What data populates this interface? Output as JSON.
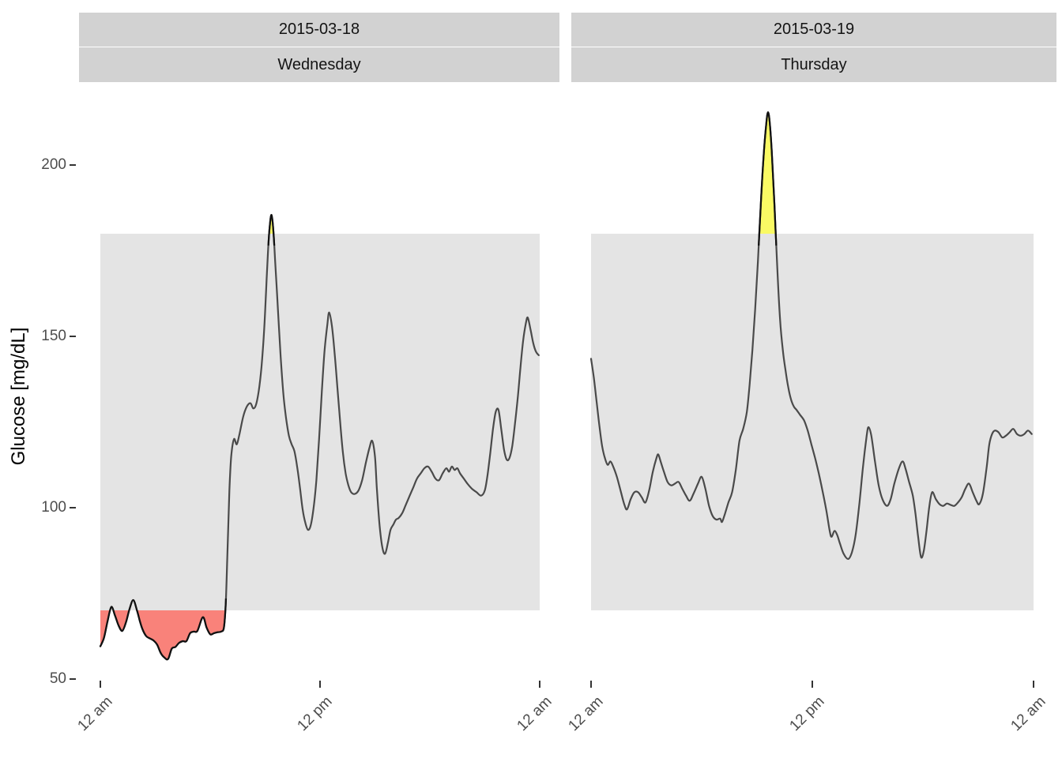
{
  "y_axis": {
    "label": "Glucose [mg/dL]",
    "ticks": [
      200,
      150,
      100,
      50
    ]
  },
  "x_axis": {
    "ticks": [
      {
        "hour": 0,
        "label": "12 am"
      },
      {
        "hour": 12,
        "label": "12 pm"
      },
      {
        "hour": 24,
        "label": "12 am"
      }
    ]
  },
  "target_band": {
    "low": 70,
    "high": 180
  },
  "colors": {
    "band": "#e4e4e4",
    "strip": "#d2d2d2",
    "line": "#4a4a4a",
    "low_fill": "#f9827a",
    "high_fill": "#fafa64",
    "outline": "#111111",
    "tick_mark": "#333333",
    "tick_text": "#4d4d4d",
    "strip_text": "#141414"
  },
  "chart_data": {
    "type": "line",
    "ylabel": "Glucose [mg/dL]",
    "y_ticks": [
      50,
      100,
      150,
      200
    ],
    "y_range": [
      45,
      225
    ],
    "x_tick_labels": [
      "12 am",
      "12 pm",
      "12 am"
    ],
    "x_tick_hours": [
      0,
      12,
      24
    ],
    "target_range": {
      "low": 70,
      "high": 180
    },
    "grid": false,
    "legend": false,
    "facets": [
      {
        "date": "2015-03-18",
        "weekday": "Wednesday",
        "points": [
          [
            0,
            59.5
          ],
          [
            0.2,
            62
          ],
          [
            0.4,
            67
          ],
          [
            0.6,
            71
          ],
          [
            0.8,
            68.5
          ],
          [
            1,
            65.5
          ],
          [
            1.2,
            64
          ],
          [
            1.4,
            66.5
          ],
          [
            1.6,
            70.5
          ],
          [
            1.8,
            73
          ],
          [
            2,
            70
          ],
          [
            2.15,
            67
          ],
          [
            2.3,
            64.5
          ],
          [
            2.5,
            62.5
          ],
          [
            2.7,
            61.8
          ],
          [
            2.9,
            61.2
          ],
          [
            3.1,
            60
          ],
          [
            3.3,
            57.5
          ],
          [
            3.5,
            56.2
          ],
          [
            3.7,
            55.8
          ],
          [
            3.9,
            58.8
          ],
          [
            4.1,
            59.3
          ],
          [
            4.3,
            60.5
          ],
          [
            4.5,
            61
          ],
          [
            4.7,
            61
          ],
          [
            4.9,
            63.3
          ],
          [
            5.1,
            63.8
          ],
          [
            5.3,
            64
          ],
          [
            5.6,
            68
          ],
          [
            5.8,
            65
          ],
          [
            6,
            63
          ],
          [
            6.2,
            63.3
          ],
          [
            6.4,
            63.6
          ],
          [
            6.6,
            63.8
          ],
          [
            6.75,
            65
          ],
          [
            6.85,
            72
          ],
          [
            6.95,
            88
          ],
          [
            7.05,
            105
          ],
          [
            7.15,
            115
          ],
          [
            7.3,
            120
          ],
          [
            7.45,
            118.5
          ],
          [
            7.6,
            121.5
          ],
          [
            7.8,
            126.5
          ],
          [
            8,
            129.5
          ],
          [
            8.2,
            130.5
          ],
          [
            8.35,
            129
          ],
          [
            8.5,
            130
          ],
          [
            8.65,
            134
          ],
          [
            8.8,
            141
          ],
          [
            8.95,
            152
          ],
          [
            9.05,
            163
          ],
          [
            9.15,
            174
          ],
          [
            9.25,
            182
          ],
          [
            9.35,
            185.5
          ],
          [
            9.45,
            181
          ],
          [
            9.55,
            172
          ],
          [
            9.7,
            158
          ],
          [
            9.85,
            144
          ],
          [
            10,
            133
          ],
          [
            10.15,
            126
          ],
          [
            10.3,
            121
          ],
          [
            10.45,
            118.5
          ],
          [
            10.6,
            116.5
          ],
          [
            10.75,
            112
          ],
          [
            10.9,
            106
          ],
          [
            11.05,
            99.5
          ],
          [
            11.2,
            95.5
          ],
          [
            11.35,
            93.5
          ],
          [
            11.5,
            95
          ],
          [
            11.65,
            100
          ],
          [
            11.8,
            108
          ],
          [
            11.95,
            120
          ],
          [
            12.1,
            134
          ],
          [
            12.25,
            146
          ],
          [
            12.4,
            153.5
          ],
          [
            12.5,
            157
          ],
          [
            12.65,
            153
          ],
          [
            12.8,
            145
          ],
          [
            12.95,
            135
          ],
          [
            13.1,
            125
          ],
          [
            13.25,
            116
          ],
          [
            13.4,
            110
          ],
          [
            13.55,
            106.5
          ],
          [
            13.7,
            104.5
          ],
          [
            13.9,
            104
          ],
          [
            14.1,
            105
          ],
          [
            14.3,
            108
          ],
          [
            14.5,
            113
          ],
          [
            14.7,
            117.5
          ],
          [
            14.85,
            119.5
          ],
          [
            15,
            115
          ],
          [
            15.1,
            106
          ],
          [
            15.25,
            95
          ],
          [
            15.4,
            88.5
          ],
          [
            15.55,
            86.5
          ],
          [
            15.7,
            89.5
          ],
          [
            15.85,
            93.5
          ],
          [
            16,
            95
          ],
          [
            16.15,
            96.5
          ],
          [
            16.3,
            97
          ],
          [
            16.5,
            98.5
          ],
          [
            16.7,
            101
          ],
          [
            16.9,
            103.5
          ],
          [
            17.1,
            106
          ],
          [
            17.3,
            108.5
          ],
          [
            17.5,
            110
          ],
          [
            17.7,
            111.5
          ],
          [
            17.9,
            112
          ],
          [
            18.1,
            110.5
          ],
          [
            18.3,
            108.5
          ],
          [
            18.5,
            108
          ],
          [
            18.7,
            110
          ],
          [
            18.9,
            111.5
          ],
          [
            19.05,
            110.5
          ],
          [
            19.2,
            112
          ],
          [
            19.35,
            111
          ],
          [
            19.5,
            111.5
          ],
          [
            19.65,
            110
          ],
          [
            19.85,
            108.5
          ],
          [
            20.05,
            107
          ],
          [
            20.3,
            105.5
          ],
          [
            20.55,
            104.5
          ],
          [
            20.8,
            103.5
          ],
          [
            21,
            105
          ],
          [
            21.15,
            109.5
          ],
          [
            21.3,
            116
          ],
          [
            21.45,
            123
          ],
          [
            21.6,
            128
          ],
          [
            21.75,
            128.5
          ],
          [
            21.9,
            123
          ],
          [
            22.05,
            117
          ],
          [
            22.2,
            114
          ],
          [
            22.35,
            114.5
          ],
          [
            22.5,
            118
          ],
          [
            22.65,
            124.5
          ],
          [
            22.8,
            132
          ],
          [
            22.95,
            141
          ],
          [
            23.1,
            149
          ],
          [
            23.25,
            154
          ],
          [
            23.35,
            155.5
          ],
          [
            23.5,
            152
          ],
          [
            23.65,
            148
          ],
          [
            23.8,
            145.5
          ],
          [
            23.95,
            144.5
          ]
        ]
      },
      {
        "date": "2015-03-19",
        "weekday": "Thursday",
        "points": [
          [
            0,
            143.5
          ],
          [
            0.15,
            138
          ],
          [
            0.3,
            131
          ],
          [
            0.45,
            124
          ],
          [
            0.6,
            118
          ],
          [
            0.75,
            114.5
          ],
          [
            0.9,
            112.5
          ],
          [
            1.05,
            113.5
          ],
          [
            1.2,
            112
          ],
          [
            1.4,
            109
          ],
          [
            1.6,
            105
          ],
          [
            1.8,
            101
          ],
          [
            1.95,
            99.5
          ],
          [
            2.15,
            102.5
          ],
          [
            2.35,
            104.5
          ],
          [
            2.55,
            104.5
          ],
          [
            2.75,
            103
          ],
          [
            2.95,
            101.5
          ],
          [
            3.15,
            105
          ],
          [
            3.35,
            110.5
          ],
          [
            3.55,
            114.5
          ],
          [
            3.65,
            115.5
          ],
          [
            3.8,
            113
          ],
          [
            3.95,
            110.5
          ],
          [
            4.15,
            107.5
          ],
          [
            4.35,
            106.5
          ],
          [
            4.55,
            107
          ],
          [
            4.75,
            107.5
          ],
          [
            4.95,
            105.5
          ],
          [
            5.15,
            103.5
          ],
          [
            5.35,
            102
          ],
          [
            5.55,
            104
          ],
          [
            5.8,
            107
          ],
          [
            6,
            109
          ],
          [
            6.2,
            105.5
          ],
          [
            6.4,
            100.5
          ],
          [
            6.6,
            97.5
          ],
          [
            6.8,
            96.5
          ],
          [
            7,
            96.8
          ],
          [
            7.1,
            95.8
          ],
          [
            7.25,
            98
          ],
          [
            7.45,
            101.5
          ],
          [
            7.65,
            104.5
          ],
          [
            7.85,
            111
          ],
          [
            8.05,
            119.5
          ],
          [
            8.25,
            123
          ],
          [
            8.45,
            128
          ],
          [
            8.6,
            136
          ],
          [
            8.75,
            146
          ],
          [
            8.9,
            158
          ],
          [
            9.05,
            172
          ],
          [
            9.2,
            188
          ],
          [
            9.35,
            202
          ],
          [
            9.5,
            212
          ],
          [
            9.6,
            215.5
          ],
          [
            9.7,
            212
          ],
          [
            9.8,
            204
          ],
          [
            9.95,
            188
          ],
          [
            10.1,
            170
          ],
          [
            10.25,
            155
          ],
          [
            10.4,
            146
          ],
          [
            10.55,
            140
          ],
          [
            10.7,
            135
          ],
          [
            10.85,
            131.5
          ],
          [
            11,
            129.5
          ],
          [
            11.15,
            128.5
          ],
          [
            11.35,
            127
          ],
          [
            11.55,
            125.5
          ],
          [
            11.75,
            122.5
          ],
          [
            11.95,
            118.5
          ],
          [
            12.15,
            114.5
          ],
          [
            12.35,
            110
          ],
          [
            12.55,
            105
          ],
          [
            12.75,
            99.5
          ],
          [
            12.95,
            93
          ],
          [
            13.05,
            91.5
          ],
          [
            13.2,
            93.2
          ],
          [
            13.35,
            92
          ],
          [
            13.5,
            89.5
          ],
          [
            13.7,
            86.5
          ],
          [
            13.95,
            85
          ],
          [
            14.15,
            87
          ],
          [
            14.35,
            92
          ],
          [
            14.55,
            101
          ],
          [
            14.75,
            112
          ],
          [
            14.95,
            121
          ],
          [
            15.05,
            123.5
          ],
          [
            15.2,
            121
          ],
          [
            15.4,
            113.5
          ],
          [
            15.6,
            106.5
          ],
          [
            15.8,
            102.5
          ],
          [
            16.05,
            100.5
          ],
          [
            16.25,
            102.5
          ],
          [
            16.45,
            107
          ],
          [
            16.7,
            111.5
          ],
          [
            16.9,
            113.5
          ],
          [
            17.05,
            111.5
          ],
          [
            17.25,
            107.5
          ],
          [
            17.45,
            103.5
          ],
          [
            17.6,
            98
          ],
          [
            17.75,
            91
          ],
          [
            17.9,
            85.5
          ],
          [
            18.05,
            87.5
          ],
          [
            18.2,
            93.5
          ],
          [
            18.35,
            100.5
          ],
          [
            18.5,
            104.5
          ],
          [
            18.7,
            102.5
          ],
          [
            18.9,
            101
          ],
          [
            19.1,
            100.5
          ],
          [
            19.3,
            101.2
          ],
          [
            19.5,
            100.8
          ],
          [
            19.7,
            100.5
          ],
          [
            19.9,
            101.5
          ],
          [
            20.1,
            103
          ],
          [
            20.3,
            105.5
          ],
          [
            20.5,
            107
          ],
          [
            20.7,
            104.5
          ],
          [
            20.9,
            102
          ],
          [
            21.05,
            101
          ],
          [
            21.25,
            104
          ],
          [
            21.45,
            111.5
          ],
          [
            21.6,
            118.5
          ],
          [
            21.75,
            121.5
          ],
          [
            21.9,
            122.5
          ],
          [
            22.1,
            122
          ],
          [
            22.3,
            120.5
          ],
          [
            22.5,
            121
          ],
          [
            22.7,
            122
          ],
          [
            22.9,
            123
          ],
          [
            23.1,
            121.5
          ],
          [
            23.3,
            121
          ],
          [
            23.5,
            121.5
          ],
          [
            23.7,
            122.5
          ],
          [
            23.9,
            121.5
          ]
        ]
      }
    ]
  }
}
